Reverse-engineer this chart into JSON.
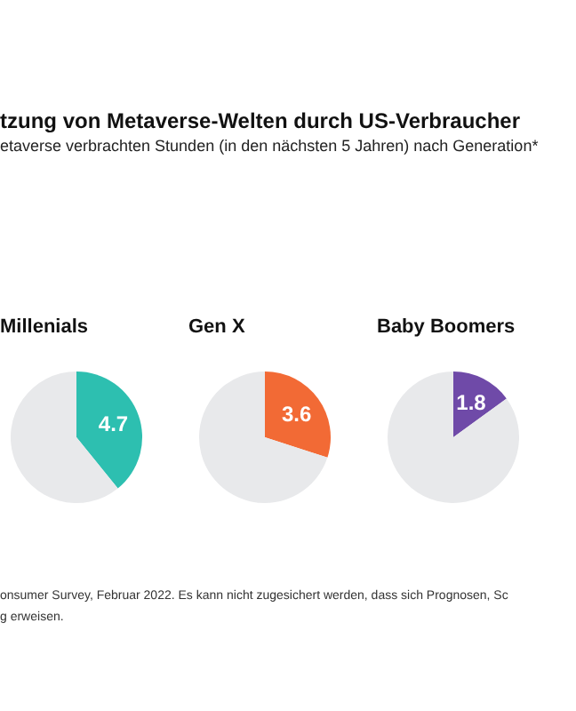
{
  "chart_data": [
    {
      "type": "other",
      "title": "tzung von Metaverse-Welten durch US-Verbraucher",
      "subtitle": "etaverse verbrachten Stunden (in den nächsten 5 Jahren) nach Generation*",
      "annotations": [
        "onsumer Survey, Februar 2022. Es kann nicht zugesichert werden, dass sich Prognosen, Sc",
        "g erweisen."
      ]
    },
    {
      "type": "pie",
      "title": "Millenials",
      "categories": [
        null,
        null
      ],
      "values": [
        4.7,
        7.3
      ],
      "colors": [
        "#2dbfb0",
        "#e8e9eb"
      ],
      "value_labels": [
        "4.7",
        null
      ]
    },
    {
      "type": "pie",
      "title": "Gen X",
      "categories": [
        null,
        null
      ],
      "values": [
        3.6,
        8.4
      ],
      "colors": [
        "#f26a35",
        "#e8e9eb"
      ],
      "value_labels": [
        "3.6",
        null
      ]
    },
    {
      "type": "pie",
      "title": "Baby Boomers",
      "categories": [
        null,
        null
      ],
      "values": [
        1.8,
        10.2
      ],
      "colors": [
        "#6f4aa8",
        "#e8e9eb"
      ],
      "value_labels": [
        "1.8",
        null
      ]
    }
  ]
}
